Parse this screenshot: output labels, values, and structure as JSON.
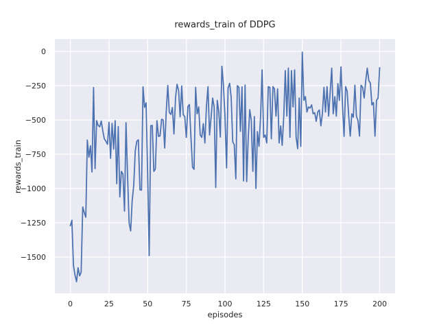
{
  "chart_data": {
    "type": "line",
    "title": "rewards_train of DDPG",
    "xlabel": "episodes",
    "ylabel": "rewards_train",
    "x_ticks": [
      0,
      25,
      50,
      75,
      100,
      125,
      150,
      175,
      200
    ],
    "y_ticks": [
      0,
      -250,
      -500,
      -750,
      -1000,
      -1250,
      -1500
    ],
    "xlim": [
      -10,
      210
    ],
    "ylim": [
      -1765,
      90
    ],
    "grid": true,
    "legend": null,
    "background": "#eaeaf2",
    "grid_color": "#ffffff",
    "line_color": "#4c72b0",
    "text_color": "#262626",
    "figure_background": "#ffffff",
    "series": [
      {
        "name": "rewards_train",
        "x_start": 0,
        "x_step": 1,
        "values": [
          -1272,
          -1232,
          -1562,
          -1630,
          -1680,
          -1578,
          -1637,
          -1612,
          -1135,
          -1175,
          -1210,
          -647,
          -772,
          -688,
          -880,
          -263,
          -855,
          -505,
          -540,
          -550,
          -508,
          -580,
          -638,
          -655,
          -678,
          -517,
          -780,
          -525,
          -713,
          -505,
          -965,
          -548,
          -1062,
          -875,
          -895,
          -1165,
          -520,
          -910,
          -1250,
          -1310,
          -1090,
          -975,
          -725,
          -655,
          -645,
          -1010,
          -1012,
          -258,
          -408,
          -375,
          -900,
          -1490,
          -542,
          -540,
          -875,
          -858,
          -505,
          -620,
          -617,
          -495,
          -500,
          -705,
          -442,
          -248,
          -445,
          -460,
          -410,
          -602,
          -338,
          -240,
          -285,
          -477,
          -252,
          -460,
          -477,
          -627,
          -402,
          -388,
          -628,
          -845,
          -860,
          -262,
          -455,
          -405,
          -610,
          -627,
          -527,
          -668,
          -405,
          -257,
          -610,
          -485,
          -340,
          -405,
          -993,
          -357,
          -440,
          -625,
          -108,
          -242,
          -475,
          -850,
          -267,
          -233,
          -333,
          -660,
          -680,
          -930,
          -250,
          -262,
          -583,
          -258,
          -945,
          -245,
          -950,
          -642,
          -425,
          -500,
          -875,
          -475,
          -1000,
          -585,
          -692,
          -475,
          -135,
          -627,
          -610,
          -668,
          -257,
          -262,
          -638,
          -257,
          -273,
          -472,
          -273,
          -668,
          -543,
          -685,
          -472,
          -140,
          -472,
          -122,
          -627,
          -140,
          -405,
          -135,
          -627,
          -710,
          -340,
          -693,
          -5,
          -357,
          -330,
          -442,
          -405,
          -413,
          -390,
          -455,
          -447,
          -510,
          -442,
          -427,
          -543,
          -455,
          -262,
          -442,
          -257,
          -472,
          -300,
          -122,
          -455,
          -330,
          -472,
          -235,
          -357,
          -113,
          -390,
          -620,
          -257,
          -290,
          -472,
          -618,
          -455,
          -480,
          -247,
          -472,
          -505,
          -618,
          -247,
          -262,
          -340,
          -213,
          -122,
          -213,
          -230,
          -390,
          -373,
          -618,
          -357,
          -340,
          -118
        ]
      }
    ]
  }
}
